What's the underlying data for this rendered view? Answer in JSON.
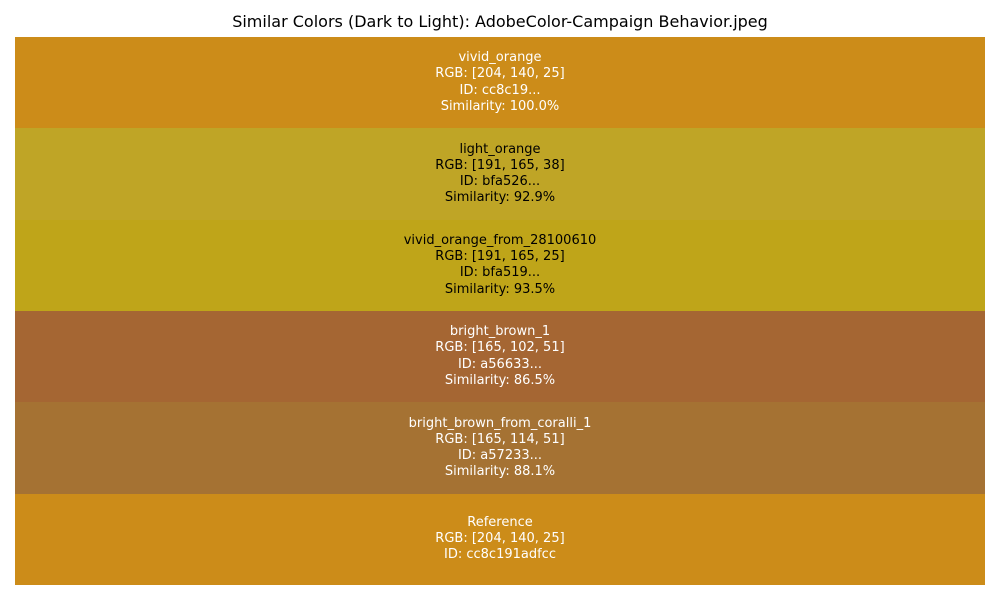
{
  "chart_data": {
    "type": "table",
    "title": "Similar Colors (Dark to Light): AdobeColor-Campaign Behavior.jpeg",
    "swatches": [
      {
        "name": "vivid_orange",
        "rgb": "RGB: [204, 140, 25]",
        "id": "ID: cc8c19...",
        "similarity": "Similarity: 100.0%",
        "color": "#cc8c19",
        "text_color": "#ffffff"
      },
      {
        "name": "light_orange",
        "rgb": "RGB: [191, 165, 38]",
        "id": "ID: bfa526...",
        "similarity": "Similarity: 92.9%",
        "color": "#bfa526",
        "text_color": "#000000"
      },
      {
        "name": "vivid_orange_from_28100610",
        "rgb": "RGB: [191, 165, 25]",
        "id": "ID: bfa519...",
        "similarity": "Similarity: 93.5%",
        "color": "#bfa519",
        "text_color": "#000000"
      },
      {
        "name": "bright_brown_1",
        "rgb": "RGB: [165, 102, 51]",
        "id": "ID: a56633...",
        "similarity": "Similarity: 86.5%",
        "color": "#a56633",
        "text_color": "#ffffff"
      },
      {
        "name": "bright_brown_from_coralli_1",
        "rgb": "RGB: [165, 114, 51]",
        "id": "ID: a57233...",
        "similarity": "Similarity: 88.1%",
        "color": "#a57233",
        "text_color": "#ffffff"
      },
      {
        "name": "Reference",
        "rgb": "RGB: [204, 140, 25]",
        "id": "ID: cc8c191adfcc",
        "similarity": "",
        "color": "#cc8c19",
        "text_color": "#ffffff"
      }
    ]
  }
}
